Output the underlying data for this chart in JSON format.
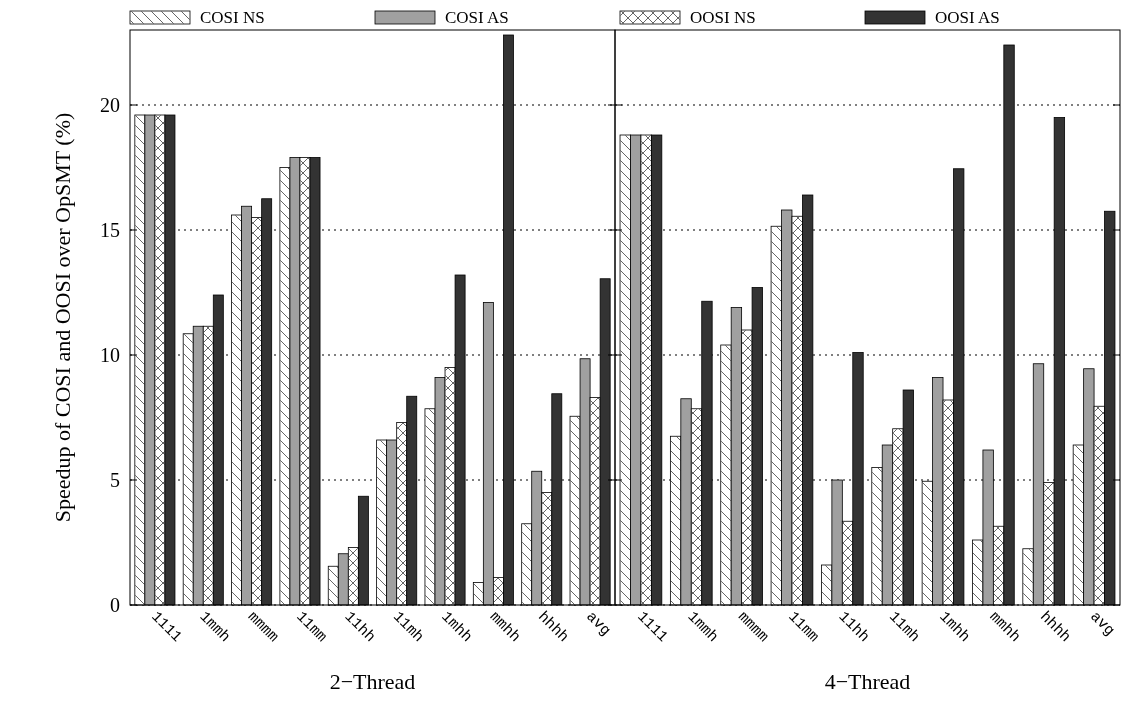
{
  "chart_data": [
    {
      "type": "bar",
      "xlabel": "2−Thread",
      "ylabel": "Speedup of COSI and OOSI over OpSMT (%)",
      "categories": [
        "1111",
        "1mmh",
        "mmmm",
        "11mm",
        "11hh",
        "11mh",
        "1mhh",
        "mmhh",
        "hhhh",
        "avg"
      ],
      "ylim": [
        0,
        23
      ],
      "yticks": [
        0,
        5,
        10,
        15,
        20
      ],
      "grid": "y",
      "legend": "top",
      "series": [
        {
          "name": "COSI NS",
          "color": "#ffffff",
          "values": [
            19.6,
            10.85,
            15.6,
            17.5,
            1.55,
            6.6,
            7.85,
            0.9,
            3.25,
            7.55
          ]
        },
        {
          "name": "COSI AS",
          "color": "#a0a0a0",
          "values": [
            19.6,
            11.15,
            15.95,
            17.9,
            2.05,
            6.6,
            9.1,
            12.1,
            5.35,
            9.85
          ]
        },
        {
          "name": "OOSI NS",
          "color": "#ffffff",
          "values": [
            19.6,
            11.15,
            15.5,
            17.9,
            2.3,
            7.3,
            9.5,
            1.1,
            4.5,
            8.3
          ]
        },
        {
          "name": "OOSI AS",
          "color": "#333333",
          "values": [
            19.6,
            12.4,
            16.25,
            17.9,
            4.35,
            8.35,
            13.2,
            22.8,
            8.45,
            13.05
          ]
        }
      ]
    },
    {
      "type": "bar",
      "xlabel": "4−Thread",
      "categories": [
        "1111",
        "1mmh",
        "mmmm",
        "11mm",
        "11hh",
        "11mh",
        "1mhh",
        "mmhh",
        "hhhh",
        "avg"
      ],
      "ylim": [
        0,
        23
      ],
      "yticks": [
        0,
        5,
        10,
        15,
        20
      ],
      "grid": "y",
      "tick_labels": "x",
      "series": [
        {
          "color": "#ffffff",
          "values": [
            18.8,
            6.75,
            10.4,
            15.15,
            1.6,
            5.5,
            4.95,
            2.6,
            2.25,
            6.4
          ]
        },
        {
          "color": "#a0a0a0",
          "values": [
            18.8,
            8.25,
            11.9,
            15.8,
            5.0,
            6.4,
            9.1,
            6.2,
            9.65,
            9.45
          ]
        },
        {
          "color": "#ffffff",
          "values": [
            18.8,
            7.85,
            11.0,
            15.55,
            3.35,
            7.05,
            8.2,
            3.15,
            4.9,
            7.95
          ]
        },
        {
          "color": "#333333",
          "values": [
            18.8,
            12.15,
            12.7,
            16.4,
            10.1,
            8.6,
            17.45,
            22.4,
            19.5,
            15.75
          ]
        }
      ]
    }
  ]
}
